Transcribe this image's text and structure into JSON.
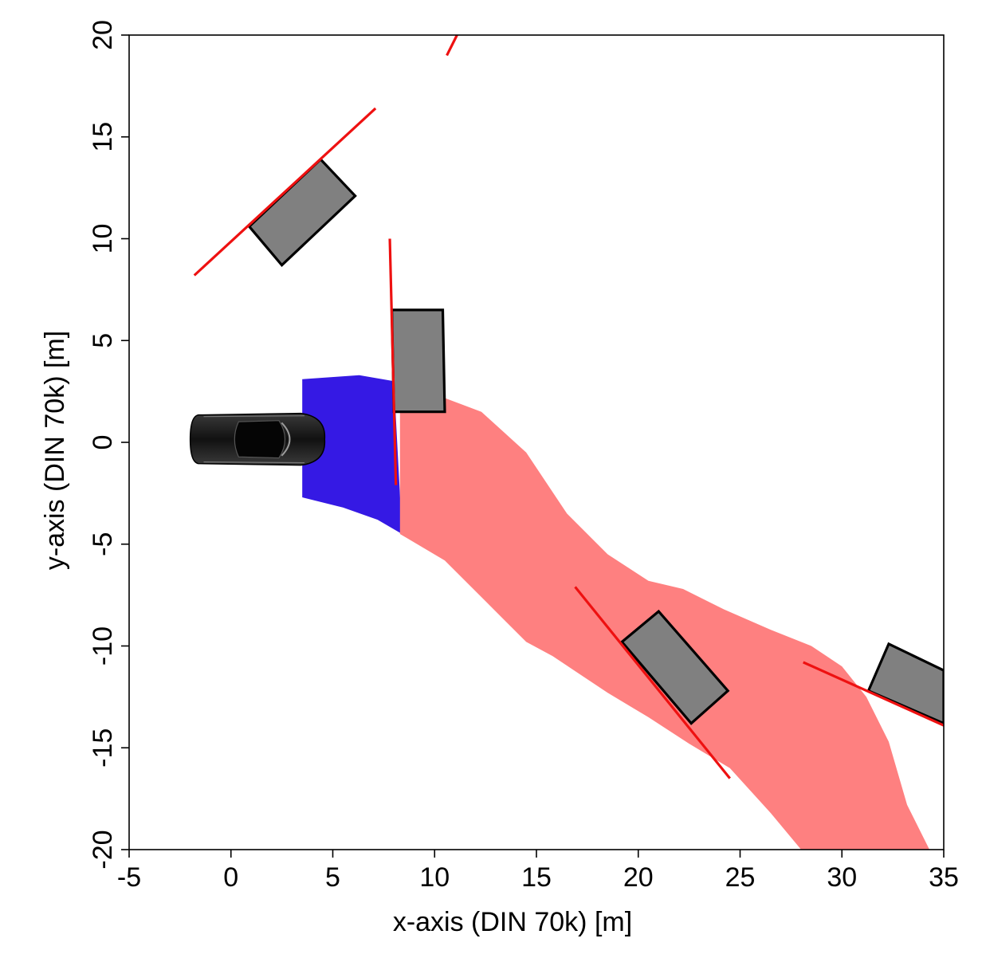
{
  "chart_data": {
    "type": "scatter",
    "title": "",
    "xlabel": "x-axis (DIN 70k) [m]",
    "ylabel": "y-axis (DIN 70k) [m]",
    "xlim": [
      -5,
      35
    ],
    "ylim": [
      -20,
      20
    ],
    "xticks": [
      -5,
      0,
      5,
      10,
      15,
      20,
      25,
      30,
      35
    ],
    "yticks": [
      -20,
      -15,
      -10,
      -5,
      0,
      5,
      10,
      15,
      20
    ],
    "grid": false,
    "legend": "none",
    "colors": {
      "blue_region": "#3519e4",
      "red_region": "#fe8080",
      "obstacle_fill": "#808080",
      "obstacle_edge": "#000000",
      "red_line": "#ee1111",
      "ego_vehicle": "#1c1c1c"
    },
    "ego_vehicle": {
      "icon": "car-top-view-icon",
      "x": [
        -2,
        4.6
      ],
      "y": [
        -1.2,
        1.5
      ]
    },
    "regions": [
      {
        "name": "blue",
        "polygon": [
          [
            3.5,
            3.1
          ],
          [
            6.3,
            3.3
          ],
          [
            8,
            3.0
          ],
          [
            8.4,
            -4.5
          ],
          [
            7.2,
            -3.8
          ],
          [
            5.5,
            -3.2
          ],
          [
            3.5,
            -2.7
          ]
        ]
      },
      {
        "name": "red",
        "polygon": [
          [
            8.3,
            3.0
          ],
          [
            12.3,
            1.5
          ],
          [
            14.5,
            -0.5
          ],
          [
            16.5,
            -3.5
          ],
          [
            18.5,
            -5.5
          ],
          [
            20.5,
            -6.8
          ],
          [
            22.2,
            -7.2
          ],
          [
            24.2,
            -8.2
          ],
          [
            26.5,
            -9.2
          ],
          [
            28.5,
            -10
          ],
          [
            30,
            -11
          ],
          [
            31.2,
            -12.5
          ],
          [
            32.3,
            -14.7
          ],
          [
            33.2,
            -17.8
          ],
          [
            34.3,
            -20
          ],
          [
            28,
            -20
          ],
          [
            26.5,
            -18.2
          ],
          [
            24.5,
            -16
          ],
          [
            22.5,
            -14.8
          ],
          [
            20.5,
            -13.5
          ],
          [
            18.5,
            -12.3
          ],
          [
            17,
            -11.3
          ],
          [
            15.8,
            -10.5
          ],
          [
            14.5,
            -9.8
          ],
          [
            12.5,
            -7.8
          ],
          [
            10.5,
            -5.8
          ],
          [
            8.3,
            -4.5
          ]
        ]
      }
    ],
    "obstacles": [
      {
        "corners": [
          [
            0.9,
            10.6
          ],
          [
            4.4,
            13.9
          ],
          [
            6.1,
            12.1
          ],
          [
            2.5,
            8.7
          ]
        ]
      },
      {
        "corners": [
          [
            7.9,
            6.5
          ],
          [
            10.4,
            6.5
          ],
          [
            10.5,
            1.5
          ],
          [
            8.0,
            1.5
          ]
        ]
      },
      {
        "corners": [
          [
            19.2,
            -9.8
          ],
          [
            21.0,
            -8.3
          ],
          [
            24.4,
            -12.2
          ],
          [
            22.6,
            -13.8
          ]
        ]
      },
      {
        "corners": [
          [
            31.3,
            -12.2
          ],
          [
            32.3,
            -9.9
          ],
          [
            35,
            -11.2
          ],
          [
            35,
            -13.8
          ]
        ]
      }
    ],
    "lines": [
      {
        "from": [
          -1.8,
          8.2
        ],
        "to": [
          7.1,
          16.4
        ]
      },
      {
        "from": [
          10.6,
          19.0
        ],
        "to": [
          11.1,
          20.0
        ]
      },
      {
        "from": [
          7.8,
          10.0
        ],
        "to": [
          8.1,
          -2.1
        ]
      },
      {
        "from": [
          16.9,
          -7.1
        ],
        "to": [
          24.5,
          -16.5
        ]
      },
      {
        "from": [
          28.1,
          -10.8
        ],
        "to": [
          35,
          -13.9
        ]
      }
    ]
  }
}
